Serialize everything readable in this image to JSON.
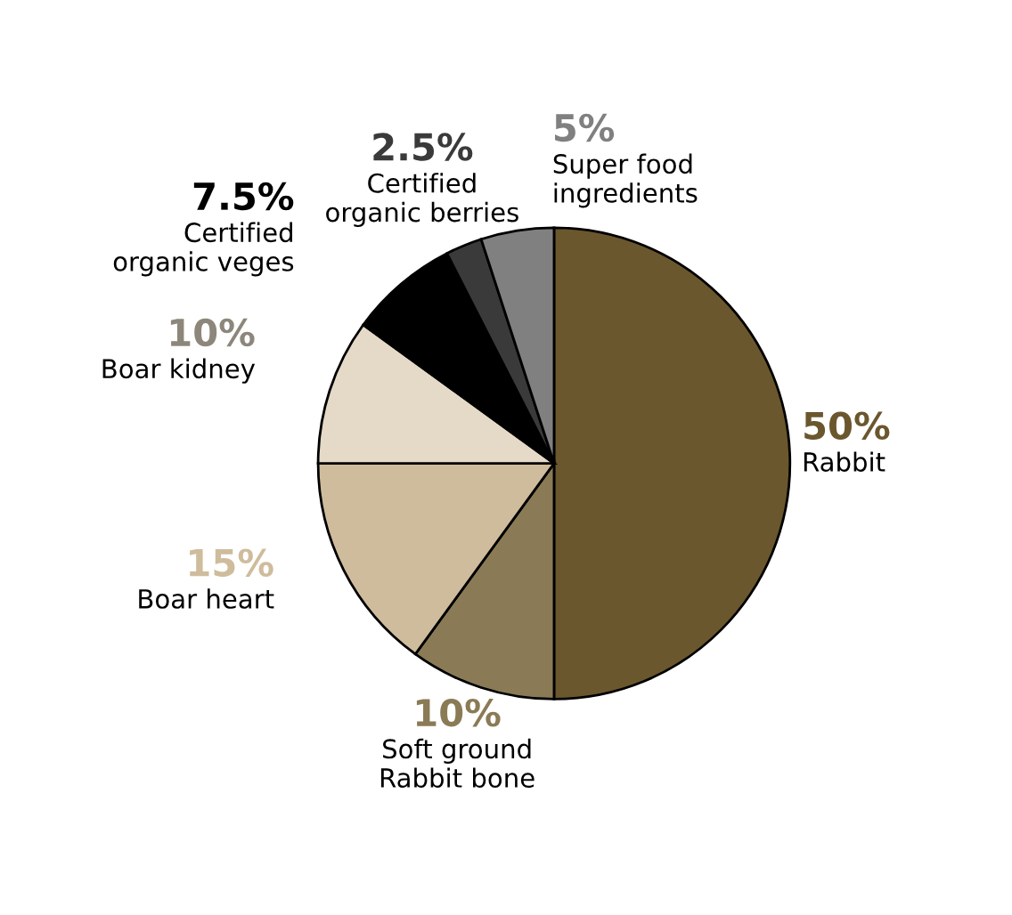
{
  "chart_data": {
    "type": "pie",
    "categories": [
      "Rabbit",
      "Soft ground\nRabbit bone",
      "Boar heart",
      "Boar kidney",
      "Certified\norganic veges",
      "Certified\norganic berries",
      "Super food\ningredients"
    ],
    "values": [
      50,
      10,
      15,
      10,
      7.5,
      2.5,
      5
    ],
    "value_labels": [
      "50%",
      "10%",
      "15%",
      "10%",
      "7.5%",
      "2.5%",
      "5%"
    ],
    "colors": [
      "#6b572d",
      "#8a7b56",
      "#cfbc9c",
      "#e4dac7",
      "#000000",
      "#3a3a3a",
      "#808080"
    ],
    "legend": false
  }
}
